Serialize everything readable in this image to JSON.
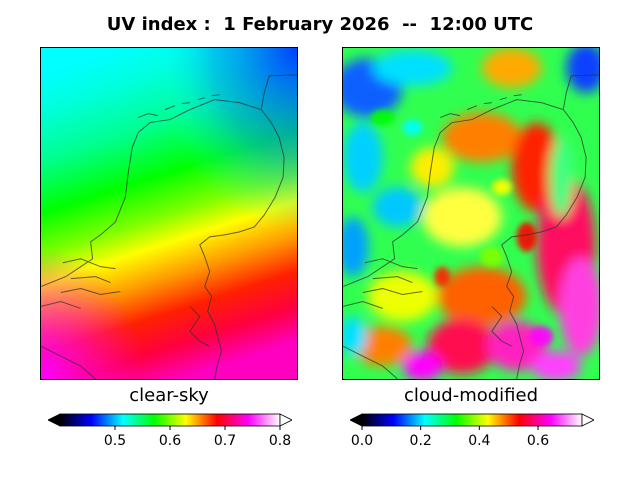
{
  "title": "UV index :  1 February 2026  --  12:00 UTC",
  "panels": [
    {
      "label": "clear-sky",
      "colorbar_ticks": [
        "0.5",
        "0.6",
        "0.7",
        "0.8"
      ],
      "tick_values": [
        0.5,
        0.6,
        0.7,
        0.8
      ],
      "range": [
        0.4,
        0.8
      ]
    },
    {
      "label": "cloud-modified",
      "colorbar_ticks": [
        "0.0",
        "0.2",
        "0.4",
        "0.6"
      ],
      "tick_values": [
        0.0,
        0.2,
        0.4,
        0.6
      ],
      "range": [
        0.0,
        0.75
      ]
    }
  ],
  "colormap": [
    "#000000",
    "#0000ff",
    "#00ffff",
    "#00ff00",
    "#ffff00",
    "#ff0000",
    "#ff00ff",
    "#ffffff"
  ]
}
